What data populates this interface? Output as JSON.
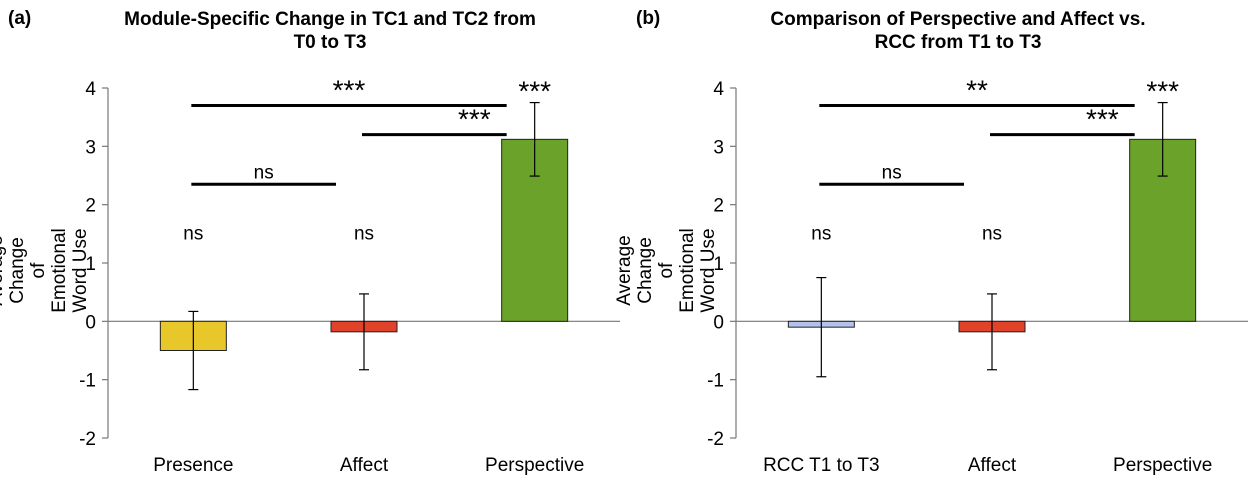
{
  "chart_data": [
    {
      "type": "bar",
      "panel_label": "(a)",
      "title": "Module-Specific Change in TC1 and TC2 from\nT0 to T3",
      "ylabel": "Average Change of\nEmotional Word Use",
      "xlabel": "",
      "ylim": [
        -2,
        4
      ],
      "yticks": [
        "4",
        "3",
        "2",
        "1",
        "0",
        "-1",
        "-2"
      ],
      "ytick_values": [
        4,
        3,
        2,
        1,
        0,
        -1,
        -2
      ],
      "categories": [
        "Presence",
        "Affect",
        "Perspective"
      ],
      "values": [
        -0.5,
        -0.18,
        3.12
      ],
      "error": [
        0.67,
        0.65,
        0.63
      ],
      "colors": [
        "#e8c72a",
        "#e0432a",
        "#6aa22a"
      ],
      "bar_labels": [
        "ns",
        "ns",
        "***"
      ],
      "comparisons": [
        {
          "from": 0,
          "to": 2,
          "label": "***"
        },
        {
          "from": 1,
          "to": 2,
          "label": "***"
        },
        {
          "from": 0,
          "to": 1,
          "label": "ns"
        }
      ]
    },
    {
      "type": "bar",
      "panel_label": "(b)",
      "title": "Comparison of Perspective and Affect vs.\nRCC from T1 to T3",
      "ylabel": "Average Change of\nEmotional Word Use",
      "xlabel": "",
      "ylim": [
        -2,
        4
      ],
      "yticks": [
        "4",
        "3",
        "2",
        "1",
        "0",
        "-1",
        "-2"
      ],
      "ytick_values": [
        4,
        3,
        2,
        1,
        0,
        -1,
        -2
      ],
      "categories": [
        "RCC T1 to T3",
        "Affect",
        "Perspective"
      ],
      "values": [
        -0.1,
        -0.18,
        3.12
      ],
      "error": [
        0.85,
        0.65,
        0.63
      ],
      "colors": [
        "#b4c3ec",
        "#e0432a",
        "#6aa22a"
      ],
      "bar_labels": [
        "ns",
        "ns",
        "***"
      ],
      "comparisons": [
        {
          "from": 0,
          "to": 2,
          "label": "**"
        },
        {
          "from": 1,
          "to": 2,
          "label": "***"
        },
        {
          "from": 0,
          "to": 1,
          "label": "ns"
        }
      ]
    }
  ]
}
